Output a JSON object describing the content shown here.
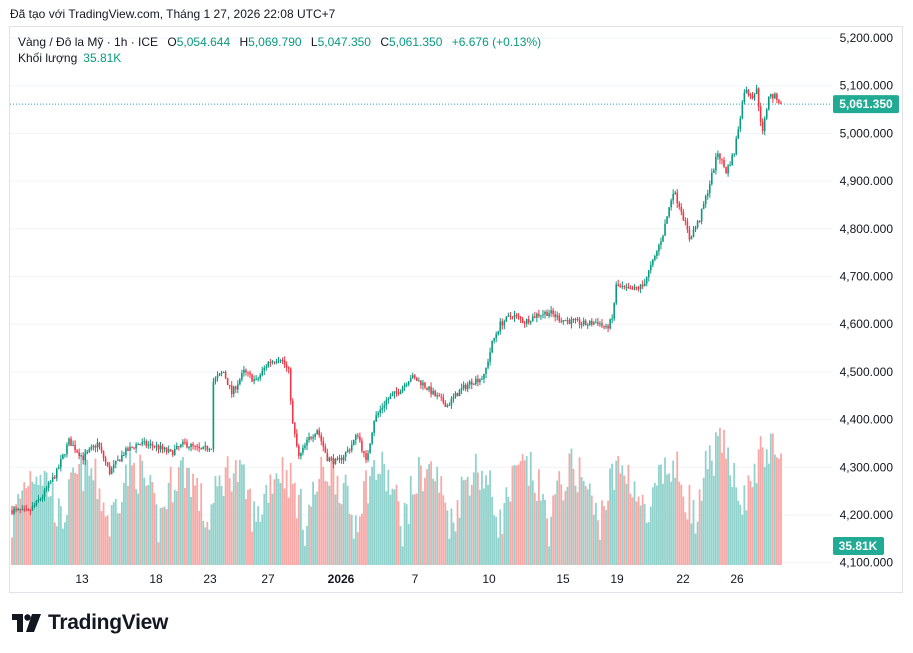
{
  "caption": "Đã tạo với TradingView.com, Tháng 1 27, 2026 22:08 UTC+7",
  "legend": {
    "symbol": "Vàng / Đô la Mỹ · 1h · ICE",
    "open_label": "O",
    "open": "5,054.644",
    "high_label": "H",
    "high": "5,069.790",
    "low_label": "L",
    "low": "5,047.350",
    "close_label": "C",
    "close": "5,061.350",
    "change": "+6.676 (+0.13%)",
    "volume_label": "Khối lượng",
    "volume": "35.81K"
  },
  "colors": {
    "up": "#089981",
    "down": "#f23645",
    "vol_up": "#92d2cc",
    "vol_down": "#f7a9a7",
    "price_tag": "#22ab94",
    "grid": "#f0f3fa"
  },
  "chart_data": {
    "type": "candlestick",
    "title": "Vàng / Đô la Mỹ · 1h · ICE",
    "ylim": [
      4090,
      5220
    ],
    "y_ticks": [
      4100,
      4200,
      4300,
      4400,
      4500,
      4600,
      4700,
      4800,
      4900,
      5000,
      5100,
      5200
    ],
    "y_tick_labels": [
      "4,100.000",
      "4,200.000",
      "4,300.000",
      "4,400.000",
      "4,500.000",
      "4,600.000",
      "4,700.000",
      "4,800.000",
      "4,900.000",
      "5,000.000",
      "5,100.000",
      "5,200.000"
    ],
    "x_ticks": [
      "13",
      "18",
      "23",
      "27",
      "2026",
      "7",
      "10",
      "15",
      "19",
      "22",
      "26"
    ],
    "last_price": 5061.35,
    "last_price_label": "5,061.350",
    "last_volume_label": "35.81K",
    "price_path": [
      {
        "i": 0,
        "p": 4210
      },
      {
        "i": 8,
        "p": 4205
      },
      {
        "i": 15,
        "p": 4240
      },
      {
        "i": 22,
        "p": 4290
      },
      {
        "i": 28,
        "p": 4355
      },
      {
        "i": 35,
        "p": 4320
      },
      {
        "i": 42,
        "p": 4350
      },
      {
        "i": 48,
        "p": 4290
      },
      {
        "i": 55,
        "p": 4330
      },
      {
        "i": 62,
        "p": 4350
      },
      {
        "i": 70,
        "p": 4345
      },
      {
        "i": 78,
        "p": 4330
      },
      {
        "i": 85,
        "p": 4350
      },
      {
        "i": 93,
        "p": 4335
      },
      {
        "i": 98,
        "p": 4345
      },
      {
        "i": 99,
        "p": 4480
      },
      {
        "i": 104,
        "p": 4500
      },
      {
        "i": 108,
        "p": 4455
      },
      {
        "i": 114,
        "p": 4500
      },
      {
        "i": 120,
        "p": 4480
      },
      {
        "i": 126,
        "p": 4520
      },
      {
        "i": 132,
        "p": 4530
      },
      {
        "i": 136,
        "p": 4500
      },
      {
        "i": 138,
        "p": 4390
      },
      {
        "i": 141,
        "p": 4320
      },
      {
        "i": 146,
        "p": 4360
      },
      {
        "i": 150,
        "p": 4380
      },
      {
        "i": 155,
        "p": 4320
      },
      {
        "i": 160,
        "p": 4310
      },
      {
        "i": 166,
        "p": 4340
      },
      {
        "i": 170,
        "p": 4370
      },
      {
        "i": 174,
        "p": 4310
      },
      {
        "i": 178,
        "p": 4400
      },
      {
        "i": 184,
        "p": 4440
      },
      {
        "i": 190,
        "p": 4460
      },
      {
        "i": 196,
        "p": 4490
      },
      {
        "i": 202,
        "p": 4475
      },
      {
        "i": 208,
        "p": 4450
      },
      {
        "i": 214,
        "p": 4430
      },
      {
        "i": 220,
        "p": 4460
      },
      {
        "i": 226,
        "p": 4480
      },
      {
        "i": 232,
        "p": 4490
      },
      {
        "i": 236,
        "p": 4560
      },
      {
        "i": 240,
        "p": 4600
      },
      {
        "i": 246,
        "p": 4620
      },
      {
        "i": 252,
        "p": 4605
      },
      {
        "i": 258,
        "p": 4620
      },
      {
        "i": 264,
        "p": 4625
      },
      {
        "i": 270,
        "p": 4610
      },
      {
        "i": 276,
        "p": 4605
      },
      {
        "i": 282,
        "p": 4600
      },
      {
        "i": 288,
        "p": 4605
      },
      {
        "i": 292,
        "p": 4590
      },
      {
        "i": 295,
        "p": 4610
      },
      {
        "i": 297,
        "p": 4680
      },
      {
        "i": 304,
        "p": 4670
      },
      {
        "i": 310,
        "p": 4680
      },
      {
        "i": 316,
        "p": 4740
      },
      {
        "i": 320,
        "p": 4790
      },
      {
        "i": 325,
        "p": 4880
      },
      {
        "i": 329,
        "p": 4840
      },
      {
        "i": 333,
        "p": 4780
      },
      {
        "i": 338,
        "p": 4820
      },
      {
        "i": 342,
        "p": 4880
      },
      {
        "i": 347,
        "p": 4960
      },
      {
        "i": 351,
        "p": 4920
      },
      {
        "i": 355,
        "p": 4960
      },
      {
        "i": 360,
        "p": 5090
      },
      {
        "i": 364,
        "p": 5080
      },
      {
        "i": 366,
        "p": 5090
      },
      {
        "i": 369,
        "p": 5000
      },
      {
        "i": 372,
        "p": 5080
      },
      {
        "i": 376,
        "p": 5075
      },
      {
        "i": 378,
        "p": 5061
      }
    ],
    "candle_count": 379
  },
  "logo": {
    "text": "TradingView"
  }
}
